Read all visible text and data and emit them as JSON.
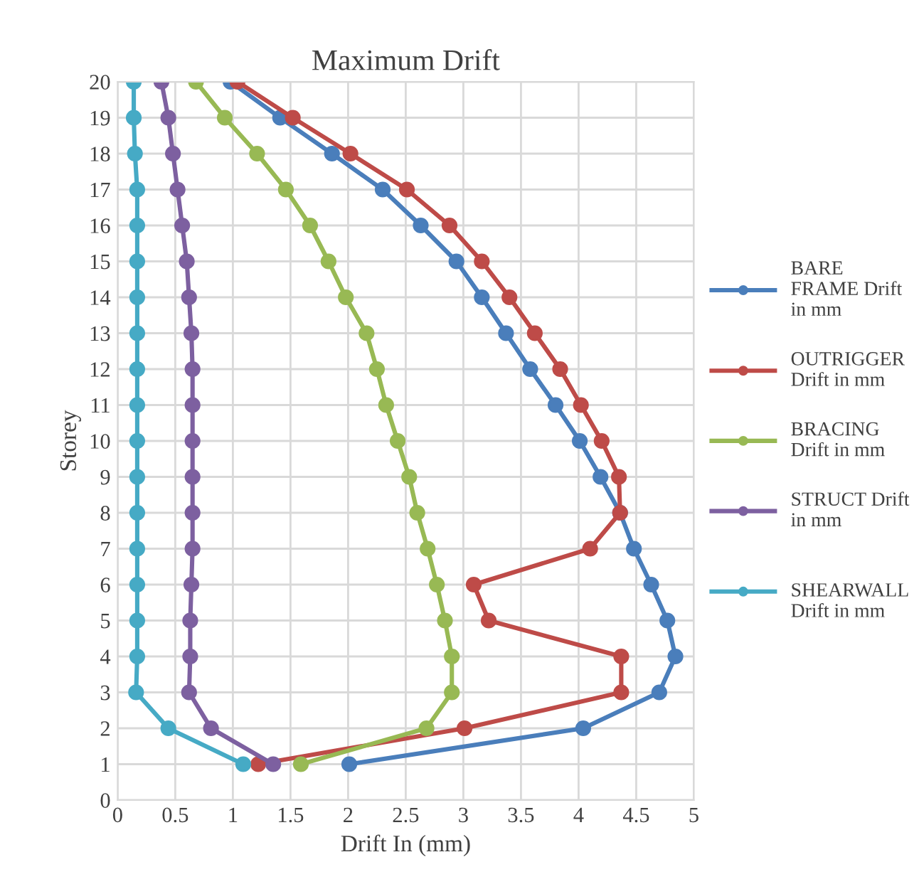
{
  "chart_data": {
    "type": "line",
    "title": "Maximum Drift",
    "xlabel": "Drift In (mm)",
    "ylabel": "Storey",
    "series": [
      {
        "name": "BARE\nFRAME Drift\nin mm",
        "color": "#4a7ebb",
        "x": [
          2.01,
          4.04,
          4.7,
          4.84,
          4.77,
          4.63,
          4.48,
          4.36,
          4.19,
          4.01,
          3.8,
          3.58,
          3.37,
          3.16,
          2.94,
          2.63,
          2.3,
          1.86,
          1.41,
          0.98
        ],
        "values": [
          1,
          2,
          3,
          4,
          5,
          6,
          7,
          8,
          9,
          10,
          11,
          12,
          13,
          14,
          15,
          16,
          17,
          18,
          19,
          20
        ]
      },
      {
        "name": "OUTRIGGER\nDrift in mm",
        "color": "#be4b48",
        "x": [
          1.22,
          3.01,
          4.37,
          4.37,
          3.22,
          3.09,
          4.1,
          4.36,
          4.35,
          4.2,
          4.02,
          3.84,
          3.62,
          3.4,
          3.16,
          2.88,
          2.51,
          2.02,
          1.52,
          1.04
        ],
        "values": [
          1,
          2,
          3,
          4,
          5,
          6,
          7,
          8,
          9,
          10,
          11,
          12,
          13,
          14,
          15,
          16,
          17,
          18,
          19,
          20
        ]
      },
      {
        "name": "BRACING\nDrift in mm",
        "color": "#98b954",
        "x": [
          1.59,
          2.68,
          2.9,
          2.9,
          2.84,
          2.77,
          2.69,
          2.6,
          2.53,
          2.43,
          2.33,
          2.25,
          2.16,
          1.98,
          1.83,
          1.67,
          1.46,
          1.21,
          0.93,
          0.68
        ],
        "values": [
          1,
          2,
          3,
          4,
          5,
          6,
          7,
          8,
          9,
          10,
          11,
          12,
          13,
          14,
          15,
          16,
          17,
          18,
          19,
          20
        ]
      },
      {
        "name": "STRUCT Drift\nin mm",
        "color": "#7d60a0",
        "x": [
          1.35,
          0.81,
          0.62,
          0.63,
          0.63,
          0.64,
          0.65,
          0.65,
          0.65,
          0.65,
          0.65,
          0.65,
          0.64,
          0.62,
          0.6,
          0.56,
          0.52,
          0.48,
          0.44,
          0.38
        ],
        "values": [
          1,
          2,
          3,
          4,
          5,
          6,
          7,
          8,
          9,
          10,
          11,
          12,
          13,
          14,
          15,
          16,
          17,
          18,
          19,
          20
        ]
      },
      {
        "name": "\nSHEARWALL\nDrift in mm",
        "color": "#46aac5",
        "x": [
          1.09,
          0.44,
          0.16,
          0.17,
          0.17,
          0.17,
          0.17,
          0.17,
          0.17,
          0.17,
          0.17,
          0.17,
          0.17,
          0.17,
          0.17,
          0.17,
          0.17,
          0.15,
          0.14,
          0.14
        ],
        "values": [
          1,
          2,
          3,
          4,
          5,
          6,
          7,
          8,
          9,
          10,
          11,
          12,
          13,
          14,
          15,
          16,
          17,
          18,
          19,
          20
        ]
      }
    ],
    "xlim": [
      0,
      5
    ],
    "xticks": [
      0,
      0.5,
      1,
      1.5,
      2,
      2.5,
      3,
      3.5,
      4,
      4.5,
      5
    ],
    "ylim": [
      0,
      20
    ],
    "yticks": [
      0,
      1,
      2,
      3,
      4,
      5,
      6,
      7,
      8,
      9,
      10,
      11,
      12,
      13,
      14,
      15,
      16,
      17,
      18,
      19,
      20
    ],
    "grid": true,
    "legend": "right",
    "marker": "circle",
    "line_style": "solid"
  }
}
